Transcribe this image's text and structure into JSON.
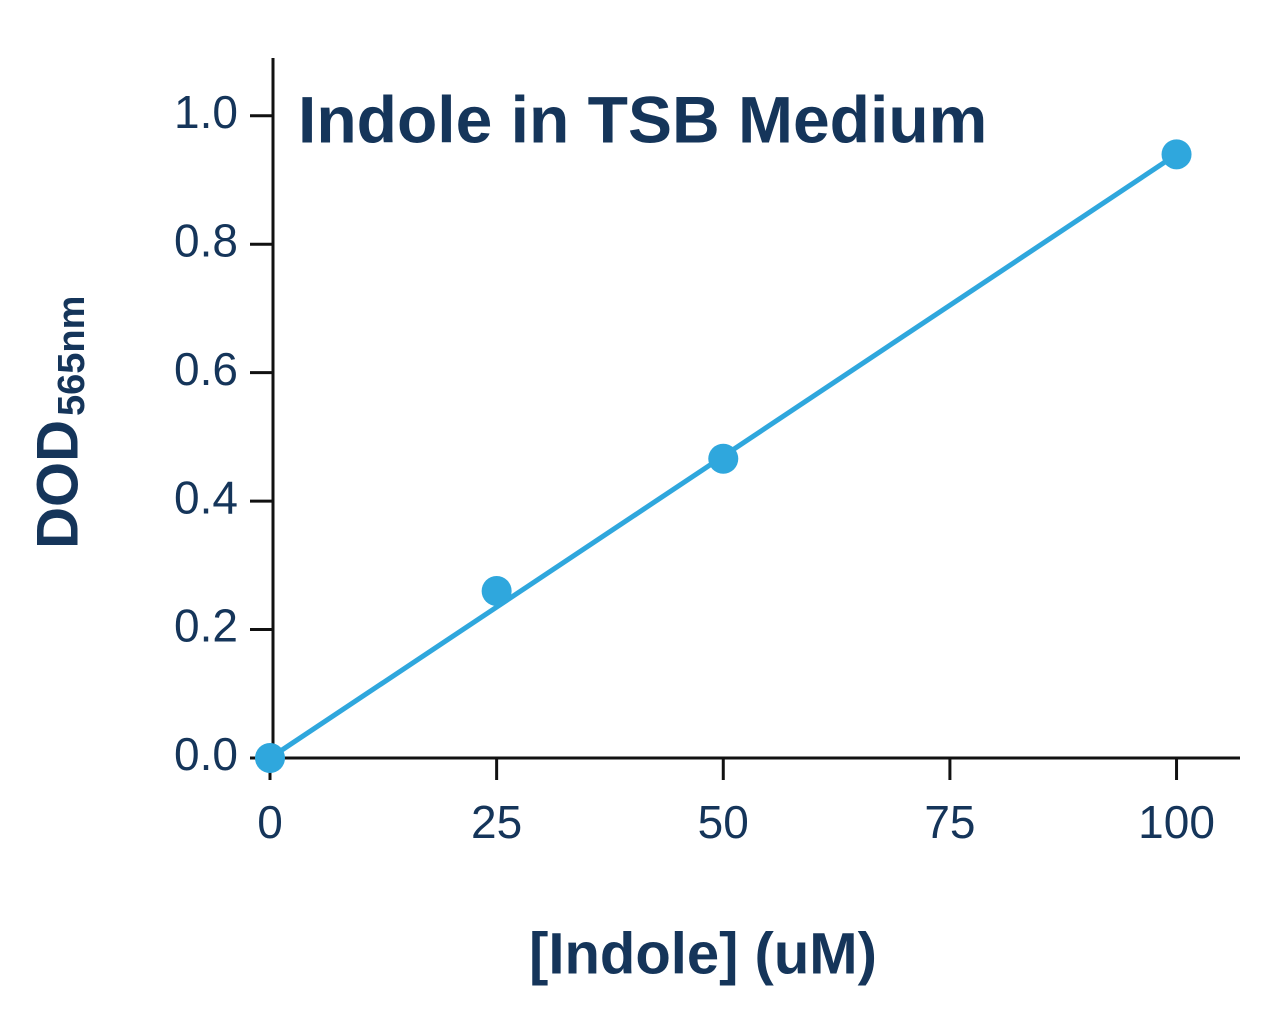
{
  "chart_data": {
    "type": "scatter",
    "title": "Indole in TSB Medium",
    "xlabel": "[Indole] (uM)",
    "ylabel": "DOD",
    "ylabel_subscript": "565nm",
    "x": [
      0,
      25,
      50,
      100
    ],
    "values": [
      0,
      0.26,
      0.466,
      0.94
    ],
    "color": "#2fa7dd",
    "fit_line": {
      "x": [
        0,
        100
      ],
      "y": [
        0,
        0.94
      ]
    },
    "xlim": [
      0,
      107
    ],
    "ylim": [
      0,
      1.09
    ],
    "xticks": [
      0,
      25,
      50,
      75,
      100
    ],
    "yticks": [
      {
        "value": 0,
        "label": "0.0"
      },
      0.2,
      0.4,
      0.6,
      0.8,
      {
        "value": 1,
        "label": "1.0"
      }
    ]
  }
}
